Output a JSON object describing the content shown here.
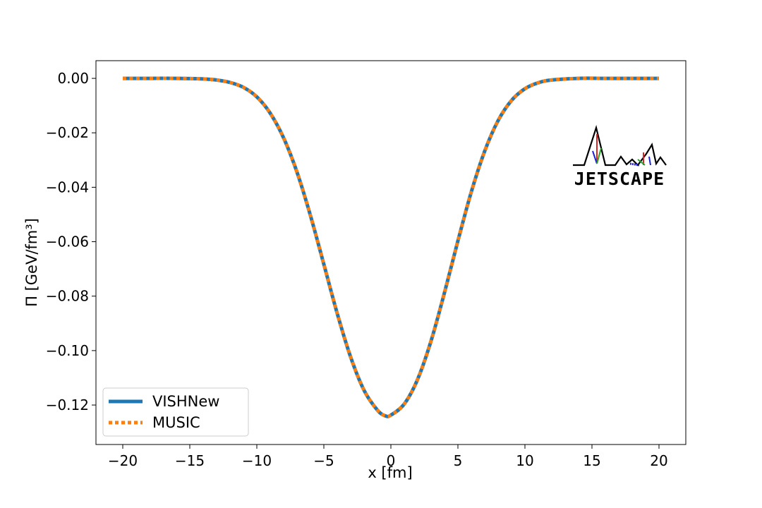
{
  "chart_data": {
    "type": "line",
    "title": "",
    "xlabel": "x [fm]",
    "ylabel": "Π  [GeV/fm³]",
    "xlim": [
      -22,
      22
    ],
    "ylim": [
      -0.1345,
      0.0065
    ],
    "xticks": [
      -20,
      -15,
      -10,
      -5,
      0,
      5,
      10,
      15,
      20
    ],
    "xtick_labels": [
      "−20",
      "−15",
      "−10",
      "−5",
      "0",
      "5",
      "10",
      "15",
      "20"
    ],
    "yticks": [
      0.0,
      -0.02,
      -0.04,
      -0.06,
      -0.08,
      -0.1,
      -0.12
    ],
    "ytick_labels": [
      "0.00",
      "−0.02",
      "−0.04",
      "−0.06",
      "−0.08",
      "−0.10",
      "−0.12"
    ],
    "grid": false,
    "legend_position": "lower-left",
    "series": [
      {
        "name": "VISHNew",
        "color": "#1f77b4",
        "style": "solid",
        "x": [
          -20,
          -18,
          -16,
          -14,
          -13,
          -12,
          -11,
          -10,
          -9,
          -8,
          -7,
          -6,
          -5,
          -4,
          -3,
          -2,
          -1,
          -0.4,
          0,
          1,
          2,
          3,
          4,
          5,
          6,
          7,
          8,
          9,
          10,
          11,
          12,
          14,
          16,
          18,
          20
        ],
        "y": [
          0.0,
          0.0,
          0.0,
          -0.0002,
          -0.0006,
          -0.0015,
          -0.0033,
          -0.0068,
          -0.0128,
          -0.0219,
          -0.0345,
          -0.0504,
          -0.0683,
          -0.0864,
          -0.1024,
          -0.1146,
          -0.1219,
          -0.124,
          -0.1237,
          -0.1196,
          -0.1105,
          -0.0964,
          -0.0787,
          -0.0597,
          -0.0417,
          -0.0267,
          -0.0155,
          -0.0081,
          -0.0038,
          -0.0016,
          -0.0006,
          0.0,
          0.0,
          0.0,
          0.0
        ]
      },
      {
        "name": "MUSIC",
        "color": "#ff7f0e",
        "style": "dotted",
        "x": [
          -20,
          -18,
          -16,
          -14,
          -13,
          -12,
          -11,
          -10,
          -9,
          -8,
          -7,
          -6,
          -5,
          -4,
          -3,
          -2,
          -1,
          -0.4,
          0,
          1,
          2,
          3,
          4,
          5,
          6,
          7,
          8,
          9,
          10,
          11,
          12,
          14,
          16,
          18,
          20
        ],
        "y": [
          0.0,
          0.0,
          0.0,
          -0.0002,
          -0.0006,
          -0.0015,
          -0.0033,
          -0.0068,
          -0.0128,
          -0.0219,
          -0.0345,
          -0.0504,
          -0.0683,
          -0.0864,
          -0.1024,
          -0.1146,
          -0.1219,
          -0.124,
          -0.1237,
          -0.1196,
          -0.1105,
          -0.0964,
          -0.0787,
          -0.0597,
          -0.0417,
          -0.0267,
          -0.0155,
          -0.0081,
          -0.0038,
          -0.0016,
          -0.0006,
          0.0,
          0.0,
          0.0,
          0.0
        ]
      }
    ],
    "logo_text": "JETSCAPE"
  }
}
